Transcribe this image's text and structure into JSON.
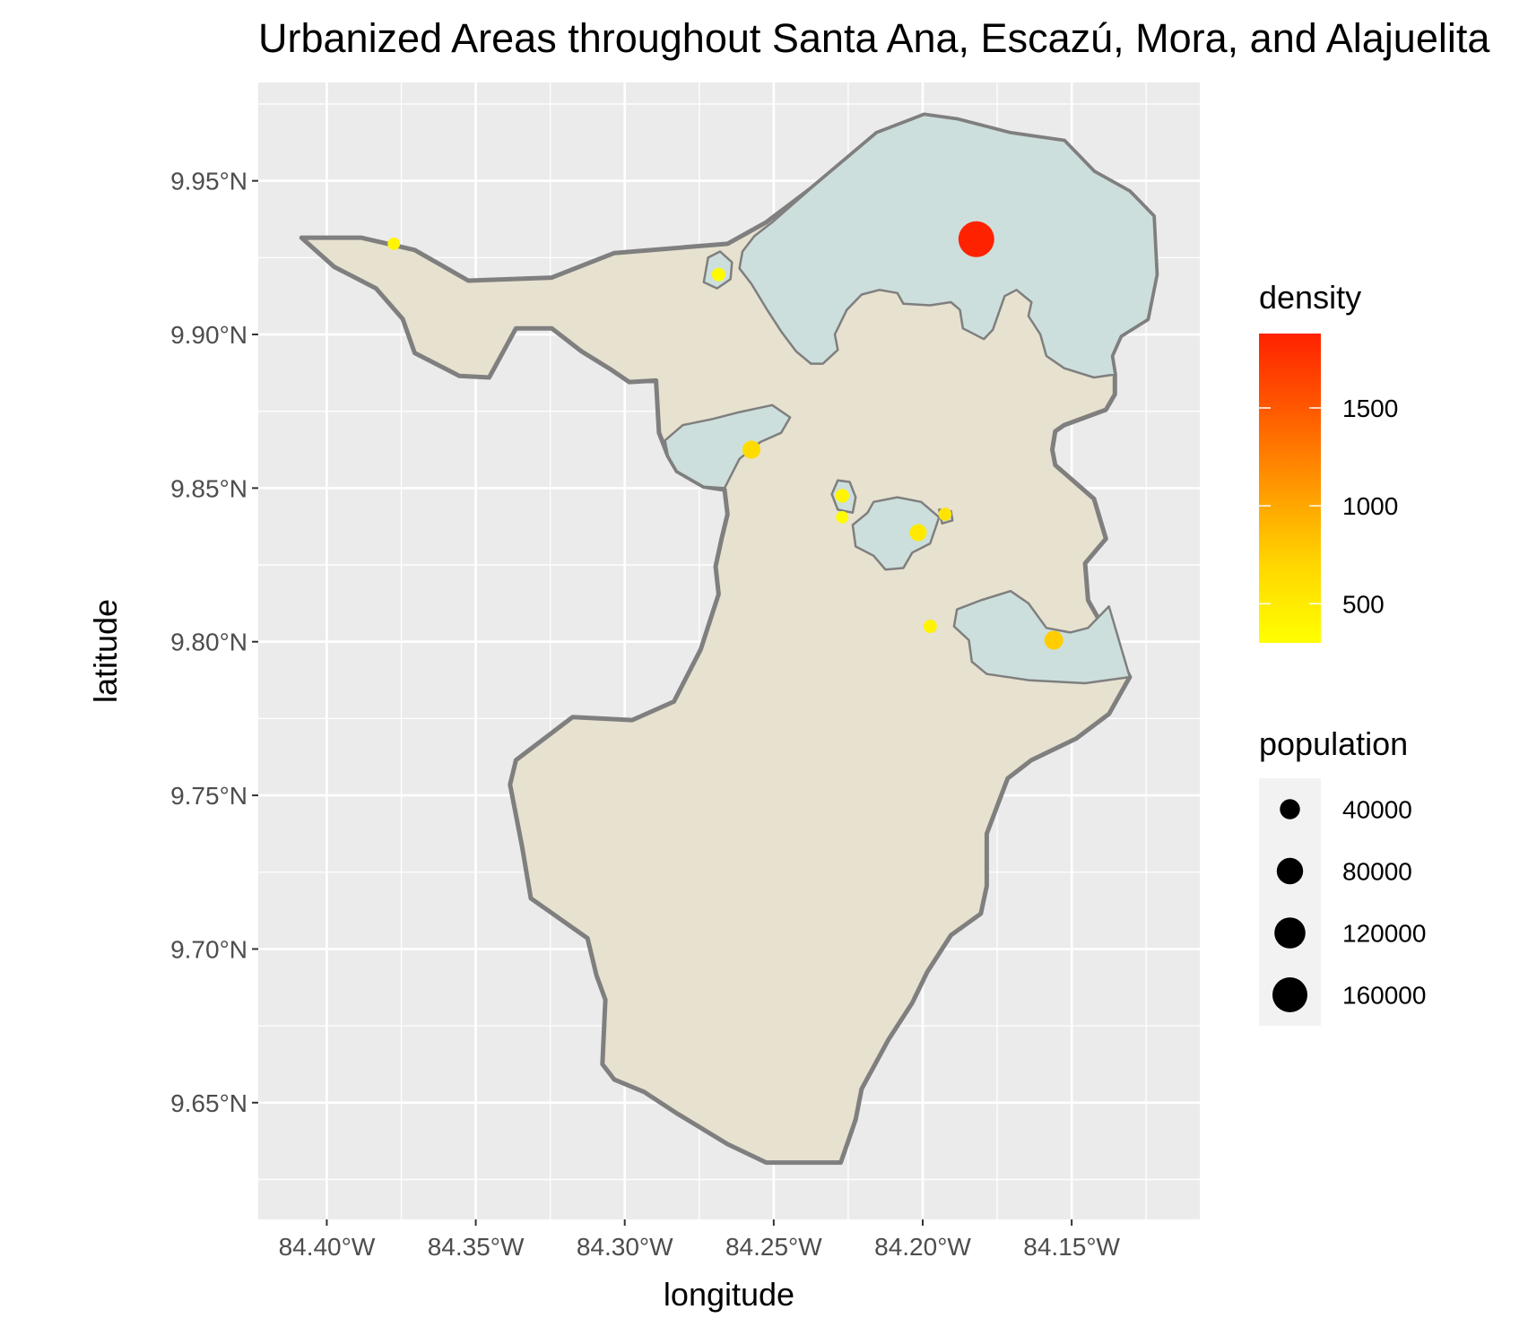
{
  "title": "Urbanized Areas throughout Santa Ana, Escazú, Mora, and Alajuelita",
  "chart_data": {
    "type": "map",
    "title": "Urbanized Areas throughout Santa Ana, Escazú, Mora, and Alajuelita",
    "xlabel": "longitude",
    "ylabel": "latitude",
    "xlim": [
      -84.423,
      -84.107
    ],
    "ylim": [
      9.612,
      9.982
    ],
    "x_ticks": [
      {
        "value": -84.4,
        "label": "84.40°W"
      },
      {
        "value": -84.35,
        "label": "84.35°W"
      },
      {
        "value": -84.3,
        "label": "84.30°W"
      },
      {
        "value": -84.25,
        "label": "84.25°W"
      },
      {
        "value": -84.2,
        "label": "84.20°W"
      },
      {
        "value": -84.15,
        "label": "84.15°W"
      }
    ],
    "y_ticks": [
      {
        "value": 9.65,
        "label": "9.65°N"
      },
      {
        "value": 9.7,
        "label": "9.70°N"
      },
      {
        "value": 9.75,
        "label": "9.75°N"
      },
      {
        "value": 9.8,
        "label": "9.80°N"
      },
      {
        "value": 9.85,
        "label": "9.85°N"
      },
      {
        "value": 9.9,
        "label": "9.90°N"
      },
      {
        "value": 9.95,
        "label": "9.95°N"
      }
    ],
    "grid": true,
    "background_color": "#ebebeb",
    "grid_color": "#ffffff",
    "region_fill": "#e7e1cf",
    "urban_fill": "#cddfdc",
    "outline_color": "#7f7f7f",
    "region_outline": [
      [
        -84.4085,
        9.9315
      ],
      [
        -84.3885,
        9.9315
      ],
      [
        -84.3705,
        9.9275
      ],
      [
        -84.3525,
        9.9175
      ],
      [
        -84.3245,
        9.9185
      ],
      [
        -84.3035,
        9.9265
      ],
      [
        -84.2655,
        9.9295
      ],
      [
        -84.2525,
        9.9365
      ],
      [
        -84.2375,
        9.9475
      ],
      [
        -84.2155,
        9.9655
      ],
      [
        -84.1995,
        9.9715
      ],
      [
        -84.1885,
        9.97
      ],
      [
        -84.1705,
        9.9655
      ],
      [
        -84.1525,
        9.963
      ],
      [
        -84.1425,
        9.953
      ],
      [
        -84.1305,
        9.9465
      ],
      [
        -84.1225,
        9.9385
      ],
      [
        -84.1215,
        9.9195
      ],
      [
        -84.1245,
        9.905
      ],
      [
        -84.1335,
        9.8995
      ],
      [
        -84.1365,
        9.893
      ],
      [
        -84.1355,
        9.887
      ],
      [
        -84.1355,
        9.8805
      ],
      [
        -84.1385,
        9.8755
      ],
      [
        -84.1525,
        9.8705
      ],
      [
        -84.1555,
        9.8685
      ],
      [
        -84.1565,
        9.8625
      ],
      [
        -84.1555,
        9.8575
      ],
      [
        -84.1425,
        9.8465
      ],
      [
        -84.1385,
        9.8335
      ],
      [
        -84.1455,
        9.8255
      ],
      [
        -84.1445,
        9.8135
      ],
      [
        -84.1375,
        9.8015
      ],
      [
        -84.1305,
        9.7885
      ],
      [
        -84.1375,
        9.7765
      ],
      [
        -84.1485,
        9.7685
      ],
      [
        -84.1635,
        9.7615
      ],
      [
        -84.1715,
        9.7555
      ],
      [
        -84.1785,
        9.7375
      ],
      [
        -84.1785,
        9.7205
      ],
      [
        -84.1805,
        9.7115
      ],
      [
        -84.1905,
        9.7045
      ],
      [
        -84.1985,
        9.6925
      ],
      [
        -84.2035,
        9.6825
      ],
      [
        -84.2115,
        9.6705
      ],
      [
        -84.2205,
        9.6545
      ],
      [
        -84.2225,
        9.6445
      ],
      [
        -84.2275,
        9.6305
      ],
      [
        -84.2525,
        9.6305
      ],
      [
        -84.2655,
        9.6365
      ],
      [
        -84.2825,
        9.6465
      ],
      [
        -84.2935,
        9.6535
      ],
      [
        -84.3035,
        9.6575
      ],
      [
        -84.3075,
        9.6625
      ],
      [
        -84.3065,
        9.6835
      ],
      [
        -84.3095,
        9.6915
      ],
      [
        -84.3125,
        9.7035
      ],
      [
        -84.3315,
        9.7165
      ],
      [
        -84.3345,
        9.7335
      ],
      [
        -84.3385,
        9.7535
      ],
      [
        -84.3365,
        9.7615
      ],
      [
        -84.3175,
        9.7755
      ],
      [
        -84.2975,
        9.7745
      ],
      [
        -84.2835,
        9.7805
      ],
      [
        -84.2745,
        9.7975
      ],
      [
        -84.2685,
        9.8155
      ],
      [
        -84.2695,
        9.8245
      ],
      [
        -84.2675,
        9.8335
      ],
      [
        -84.2655,
        9.8415
      ],
      [
        -84.2665,
        9.8495
      ],
      [
        -84.2735,
        9.8505
      ],
      [
        -84.2825,
        9.8555
      ],
      [
        -84.2855,
        9.8605
      ],
      [
        -84.2885,
        9.868
      ],
      [
        -84.2895,
        9.885
      ],
      [
        -84.2985,
        9.8845
      ],
      [
        -84.3045,
        9.8885
      ],
      [
        -84.3145,
        9.8945
      ],
      [
        -84.3245,
        9.902
      ],
      [
        -84.3365,
        9.902
      ],
      [
        -84.3455,
        9.886
      ],
      [
        -84.3555,
        9.8865
      ],
      [
        -84.3705,
        9.894
      ],
      [
        -84.3745,
        9.905
      ],
      [
        -84.3835,
        9.915
      ],
      [
        -84.3975,
        9.922
      ],
      [
        -84.4085,
        9.9315
      ]
    ],
    "urban_areas": [
      {
        "outline": [
          [
            -84.2505,
            9.9365
          ],
          [
            -84.2375,
            9.9475
          ],
          [
            -84.2155,
            9.9655
          ],
          [
            -84.1995,
            9.9715
          ],
          [
            -84.1885,
            9.97
          ],
          [
            -84.1705,
            9.9655
          ],
          [
            -84.1525,
            9.963
          ],
          [
            -84.1425,
            9.953
          ],
          [
            -84.1305,
            9.9465
          ],
          [
            -84.1225,
            9.9385
          ],
          [
            -84.1215,
            9.9195
          ],
          [
            -84.1245,
            9.905
          ],
          [
            -84.1335,
            9.8995
          ],
          [
            -84.1365,
            9.893
          ],
          [
            -84.1355,
            9.887
          ],
          [
            -84.1425,
            9.886
          ],
          [
            -84.1525,
            9.889
          ],
          [
            -84.1585,
            9.893
          ],
          [
            -84.1605,
            9.9
          ],
          [
            -84.1645,
            9.906
          ],
          [
            -84.1635,
            9.9105
          ],
          [
            -84.1685,
            9.9145
          ],
          [
            -84.1725,
            9.9125
          ],
          [
            -84.1765,
            9.9015
          ],
          [
            -84.1795,
            9.8985
          ],
          [
            -84.1865,
            9.902
          ],
          [
            -84.1875,
            9.908
          ],
          [
            -84.1905,
            9.9105
          ],
          [
            -84.1975,
            9.9095
          ],
          [
            -84.2065,
            9.91
          ],
          [
            -84.2085,
            9.9135
          ],
          [
            -84.2145,
            9.9145
          ],
          [
            -84.2205,
            9.913
          ],
          [
            -84.2255,
            9.908
          ],
          [
            -84.2295,
            9.9
          ],
          [
            -84.2285,
            9.895
          ],
          [
            -84.2335,
            9.8905
          ],
          [
            -84.2375,
            9.8905
          ],
          [
            -84.2425,
            9.8945
          ],
          [
            -84.2475,
            9.901
          ],
          [
            -84.2525,
            9.9085
          ],
          [
            -84.2575,
            9.9165
          ],
          [
            -84.2615,
            9.9215
          ],
          [
            -84.2605,
            9.927
          ],
          [
            -84.2565,
            9.932
          ],
          [
            -84.2505,
            9.9365
          ]
        ]
      },
      {
        "outline": [
          [
            -84.2865,
            9.8655
          ],
          [
            -84.2805,
            9.8705
          ],
          [
            -84.2705,
            9.8725
          ],
          [
            -84.2625,
            9.8745
          ],
          [
            -84.2505,
            9.877
          ],
          [
            -84.2445,
            9.873
          ],
          [
            -84.2475,
            9.868
          ],
          [
            -84.2545,
            9.865
          ],
          [
            -84.2615,
            9.8595
          ],
          [
            -84.2665,
            9.85
          ],
          [
            -84.2735,
            9.8505
          ],
          [
            -84.2825,
            9.8555
          ],
          [
            -84.2855,
            9.8605
          ],
          [
            -84.2865,
            9.8655
          ]
        ]
      },
      {
        "outline": [
          [
            -84.272,
            9.925
          ],
          [
            -84.268,
            9.927
          ],
          [
            -84.264,
            9.9235
          ],
          [
            -84.2645,
            9.918
          ],
          [
            -84.269,
            9.915
          ],
          [
            -84.2735,
            9.917
          ],
          [
            -84.272,
            9.925
          ]
        ]
      },
      {
        "outline": [
          [
            -84.2285,
            9.8525
          ],
          [
            -84.2245,
            9.852
          ],
          [
            -84.2225,
            9.847
          ],
          [
            -84.2235,
            9.842
          ],
          [
            -84.2285,
            9.843
          ],
          [
            -84.2305,
            9.848
          ],
          [
            -84.2285,
            9.8525
          ]
        ]
      },
      {
        "outline": [
          [
            -84.2165,
            9.8455
          ],
          [
            -84.2085,
            9.847
          ],
          [
            -84.2005,
            9.8455
          ],
          [
            -84.1945,
            9.8405
          ],
          [
            -84.1975,
            9.832
          ],
          [
            -84.2035,
            9.829
          ],
          [
            -84.2065,
            9.824
          ],
          [
            -84.2125,
            9.8235
          ],
          [
            -84.2165,
            9.828
          ],
          [
            -84.2225,
            9.831
          ],
          [
            -84.2235,
            9.838
          ],
          [
            -84.2185,
            9.842
          ],
          [
            -84.2165,
            9.8455
          ]
        ]
      },
      {
        "outline": [
          [
            -84.1945,
            9.843
          ],
          [
            -84.1905,
            9.8425
          ],
          [
            -84.19,
            9.8395
          ],
          [
            -84.1935,
            9.8385
          ],
          [
            -84.1945,
            9.843
          ]
        ]
      },
      {
        "outline": [
          [
            -84.1885,
            9.8105
          ],
          [
            -84.1805,
            9.8135
          ],
          [
            -84.1705,
            9.8165
          ],
          [
            -84.1645,
            9.8125
          ],
          [
            -84.1585,
            9.8045
          ],
          [
            -84.1505,
            9.803
          ],
          [
            -84.1445,
            9.8045
          ],
          [
            -84.1375,
            9.8115
          ],
          [
            -84.1305,
            9.7885
          ],
          [
            -84.1455,
            9.7865
          ],
          [
            -84.1645,
            9.7875
          ],
          [
            -84.1785,
            9.7895
          ],
          [
            -84.1835,
            9.7935
          ],
          [
            -84.1845,
            9.8005
          ],
          [
            -84.1895,
            9.805
          ],
          [
            -84.1885,
            9.8105
          ]
        ]
      }
    ],
    "points_legend_note": "dot fill encodes density; dot size encodes population",
    "points": [
      {
        "lon": -84.182,
        "lat": 9.931,
        "density": 1880,
        "population": 170000
      },
      {
        "lon": -84.3775,
        "lat": 9.9295,
        "density": 400,
        "population": 9000
      },
      {
        "lon": -84.2685,
        "lat": 9.9195,
        "density": 350,
        "population": 12000
      },
      {
        "lon": -84.2575,
        "lat": 9.8625,
        "density": 650,
        "population": 30000
      },
      {
        "lon": -84.227,
        "lat": 9.8475,
        "density": 400,
        "population": 13000
      },
      {
        "lon": -84.227,
        "lat": 9.8405,
        "density": 340,
        "population": 9000
      },
      {
        "lon": -84.2015,
        "lat": 9.8355,
        "density": 520,
        "population": 25000
      },
      {
        "lon": -84.1925,
        "lat": 9.8415,
        "density": 580,
        "population": 11000
      },
      {
        "lon": -84.1975,
        "lat": 9.805,
        "density": 420,
        "population": 12000
      },
      {
        "lon": -84.156,
        "lat": 9.8005,
        "density": 760,
        "population": 33000
      }
    ],
    "legends": {
      "density": {
        "title": "density",
        "type": "gradient",
        "min": 300,
        "max": 1880,
        "colors": [
          "#ffff00",
          "#ffd700",
          "#ff9900",
          "#ff5a00",
          "#ff2200"
        ],
        "breaks": [
          {
            "value": 500,
            "label": "500"
          },
          {
            "value": 1000,
            "label": "1000"
          },
          {
            "value": 1500,
            "label": "1500"
          }
        ]
      },
      "population": {
        "title": "population",
        "type": "size",
        "entries": [
          {
            "value": 40000,
            "label": "40000"
          },
          {
            "value": 80000,
            "label": "80000"
          },
          {
            "value": 120000,
            "label": "120000"
          },
          {
            "value": 160000,
            "label": "160000"
          }
        ]
      }
    }
  }
}
